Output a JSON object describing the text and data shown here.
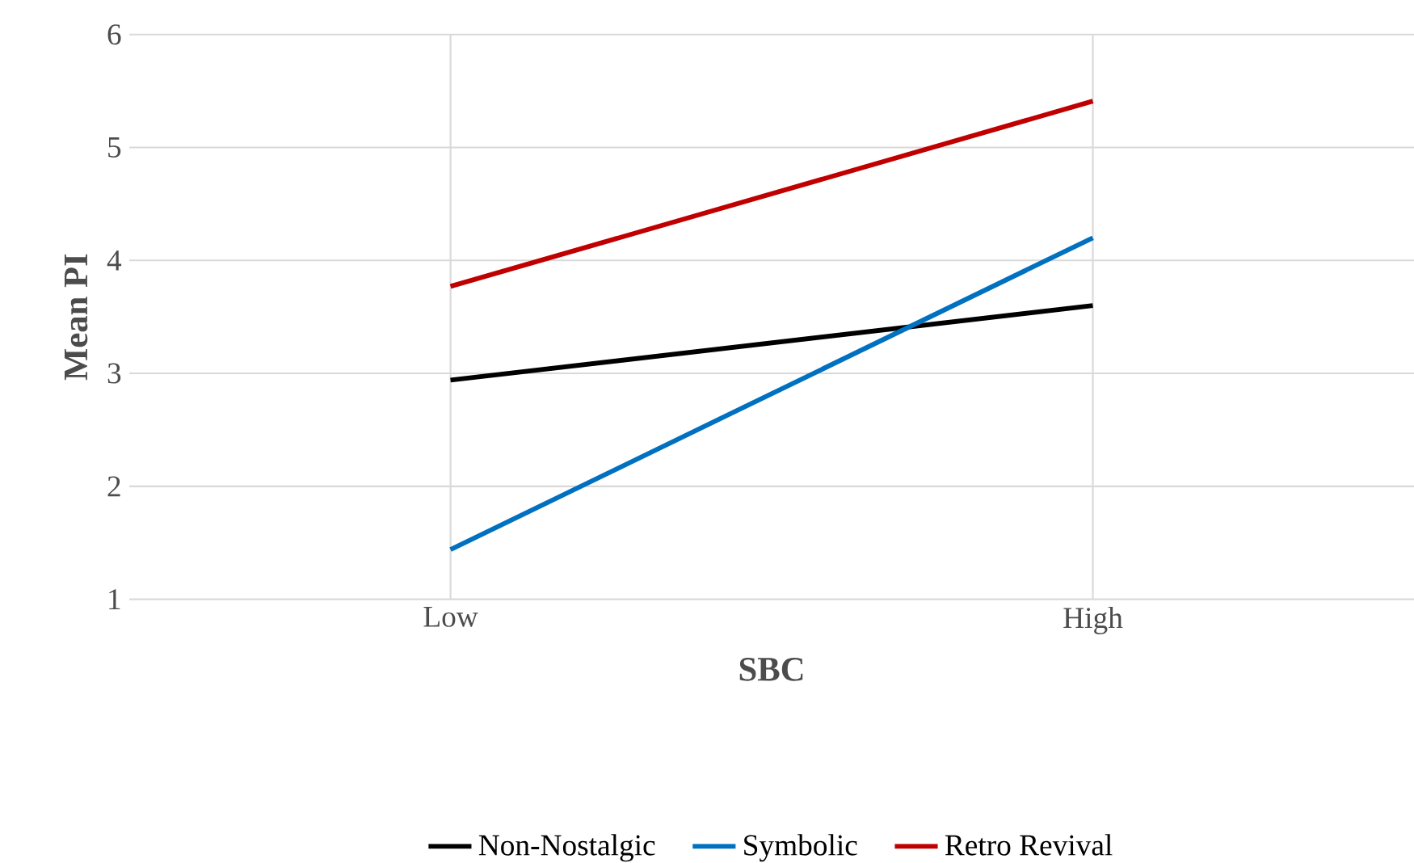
{
  "chart_data": {
    "type": "line",
    "xlabel": "SBC",
    "ylabel": "Mean PI",
    "categories": [
      "Low",
      "High"
    ],
    "series": [
      {
        "name": "Non-Nostalgic",
        "color": "#000000",
        "values": [
          2.94,
          3.6
        ]
      },
      {
        "name": "Symbolic",
        "color": "#0070c0",
        "values": [
          1.44,
          4.2
        ]
      },
      {
        "name": "Retro Revival",
        "color": "#c00000",
        "values": [
          3.77,
          5.41
        ]
      }
    ],
    "ylim": [
      1,
      6
    ],
    "yticks": [
      1,
      2,
      3,
      4,
      5,
      6
    ],
    "grid": true,
    "legend": "bottom",
    "marker": "none",
    "line_style": "solid"
  }
}
